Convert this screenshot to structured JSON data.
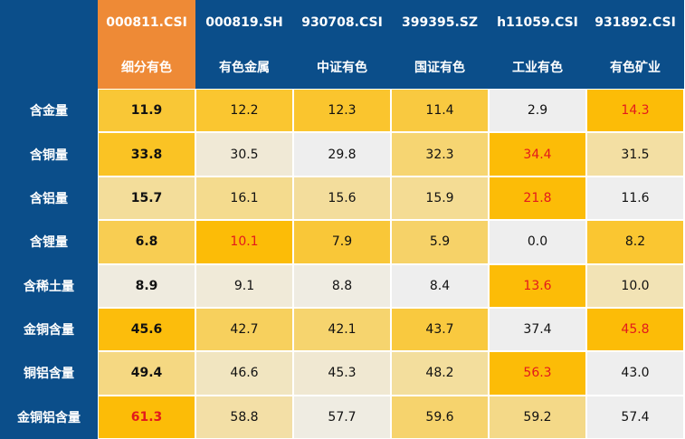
{
  "chart_data": {
    "type": "table",
    "columns": [
      {
        "code": "000811.CSI",
        "name": "细分有色"
      },
      {
        "code": "000819.SH",
        "name": "有色金属"
      },
      {
        "code": "930708.CSI",
        "name": "中证有色"
      },
      {
        "code": "399395.SZ",
        "name": "国证有色"
      },
      {
        "code": "h11059.CSI",
        "name": "工业有色"
      },
      {
        "code": "931892.CSI",
        "name": "有色矿业"
      }
    ],
    "highlight_column": 0,
    "rows": [
      {
        "label": "含金量",
        "values": [
          "11.9",
          "12.2",
          "12.3",
          "11.4",
          "2.9",
          "14.3"
        ],
        "max_col": 5
      },
      {
        "label": "含铜量",
        "values": [
          "33.8",
          "30.5",
          "29.8",
          "32.3",
          "34.4",
          "31.5"
        ],
        "max_col": 4
      },
      {
        "label": "含铝量",
        "values": [
          "15.7",
          "16.1",
          "15.6",
          "15.9",
          "21.8",
          "11.6"
        ],
        "max_col": 4
      },
      {
        "label": "含锂量",
        "values": [
          "6.8",
          "10.1",
          "7.9",
          "5.9",
          "0.0",
          "8.2"
        ],
        "max_col": 1
      },
      {
        "label": "含稀土量",
        "values": [
          "8.9",
          "9.1",
          "8.8",
          "8.4",
          "13.6",
          "10.0"
        ],
        "max_col": 4
      },
      {
        "label": "金铜含量",
        "values": [
          "45.6",
          "42.7",
          "42.1",
          "43.7",
          "37.4",
          "45.8"
        ],
        "max_col": 5
      },
      {
        "label": "铜铝含量",
        "values": [
          "49.4",
          "46.6",
          "45.3",
          "48.2",
          "56.3",
          "43.0"
        ],
        "max_col": 4
      },
      {
        "label": "金铜铝含量",
        "values": [
          "61.3",
          "58.8",
          "57.7",
          "59.6",
          "59.2",
          "57.4"
        ],
        "max_col": 0
      }
    ],
    "colors": {
      "header_bg": "#0b4e8a",
      "highlight_header_bg": "#ee8a36",
      "max_text": "#e3191c",
      "scale": [
        "#eeeeee",
        "#f1e6c6",
        "#f5d77d",
        "#f9c93f",
        "#fcbc07"
      ]
    }
  }
}
